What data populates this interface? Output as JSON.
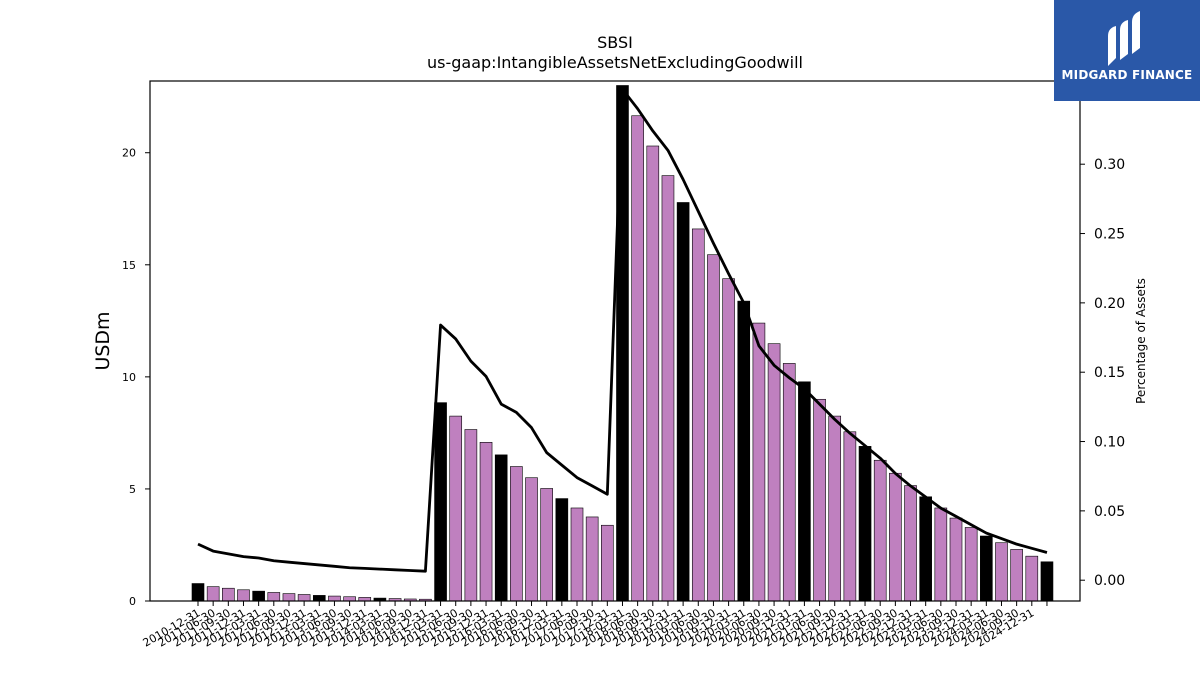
{
  "chart_data": {
    "type": "bar",
    "title": "SBSI",
    "subtitle": "us-gaap:IntangibleAssetsNetExcludingGoodwill",
    "ylabel": "USDm",
    "y2label": "Percentage of Assets",
    "ylim": [
      0,
      23.2
    ],
    "y2lim": [
      -0.015,
      0.36
    ],
    "yticks": [
      0,
      5,
      10,
      15,
      20
    ],
    "y2ticks": [
      "0.00",
      "0.05",
      "0.10",
      "0.15",
      "0.20",
      "0.25",
      "0.30",
      "0.35"
    ],
    "categories": [
      "2010-12-31",
      "2011-03-31",
      "2011-06-30",
      "2011-09-30",
      "2011-12-31",
      "2012-03-31",
      "2012-06-30",
      "2012-09-30",
      "2012-12-31",
      "2013-03-31",
      "2013-06-30",
      "2013-09-30",
      "2013-12-31",
      "2014-03-31",
      "2014-06-30",
      "2014-09-30",
      "2014-12-31",
      "2015-03-31",
      "2015-06-30",
      "2015-09-30",
      "2015-12-31",
      "2016-03-31",
      "2016-06-30",
      "2016-09-30",
      "2016-12-31",
      "2017-03-31",
      "2017-06-30",
      "2017-09-30",
      "2017-12-31",
      "2018-03-31",
      "2018-06-30",
      "2018-09-30",
      "2018-12-31",
      "2019-03-31",
      "2019-06-30",
      "2019-09-30",
      "2019-12-31",
      "2020-03-31",
      "2020-06-30",
      "2020-09-30",
      "2020-12-31",
      "2021-03-31",
      "2021-06-30",
      "2021-09-30",
      "2021-12-31",
      "2022-03-31",
      "2022-06-30",
      "2022-09-30",
      "2022-12-31",
      "2023-03-31",
      "2023-06-30",
      "2023-09-30",
      "2023-12-31",
      "2024-03-31",
      "2024-06-30",
      "2024-09-30",
      "2024-12-31"
    ],
    "tick_labels": [
      "2010-12-31",
      "2011-06-30",
      "2011-09-30",
      "2011-12-31",
      "2012-03-31",
      "2012-06-30",
      "2012-09-30",
      "2012-12-31",
      "2013-03-31",
      "2013-06-30",
      "2013-09-30",
      "2013-12-31",
      "2014-03-31",
      "2014-06-30",
      "2014-09-30",
      "2014-12-31",
      "2015-03-31",
      "2015-06-30",
      "2015-09-30",
      "2015-12-31",
      "2016-03-31",
      "2016-06-30",
      "2016-09-30",
      "2016-12-31",
      "2017-03-31",
      "2017-06-30",
      "2017-09-30",
      "2017-12-31",
      "2018-03-31",
      "2018-06-30",
      "2018-09-30",
      "2018-12-31",
      "2019-03-31",
      "2019-06-30",
      "2019-09-30",
      "2019-12-31",
      "2020-03-31",
      "2020-06-30",
      "2020-09-30",
      "2020-12-31",
      "2021-03-31",
      "2021-06-30",
      "2021-09-30",
      "2021-12-31",
      "2022-03-31",
      "2022-06-30",
      "2022-09-30",
      "2022-12-31",
      "2023-03-31",
      "2023-06-30",
      "2023-09-30",
      "2023-12-31",
      "2024-03-31",
      "2024-06-30",
      "2024-09-30",
      "2024-12-31"
    ],
    "values": [
      0.78,
      0.64,
      0.57,
      0.5,
      0.44,
      0.38,
      0.33,
      0.29,
      0.25,
      0.22,
      0.19,
      0.16,
      0.13,
      0.11,
      0.09,
      0.08,
      8.85,
      8.25,
      7.65,
      7.08,
      6.52,
      6.0,
      5.5,
      5.02,
      4.57,
      4.15,
      3.75,
      3.38,
      23.0,
      21.65,
      20.3,
      18.98,
      17.78,
      16.6,
      15.45,
      14.38,
      13.38,
      12.4,
      11.48,
      10.6,
      9.78,
      9.0,
      8.25,
      7.55,
      6.9,
      6.28,
      5.7,
      5.15,
      4.65,
      4.15,
      3.7,
      3.28,
      2.9,
      2.6,
      2.3,
      2.0,
      1.75
    ],
    "year_end_color": "#000000",
    "bar_color": "#bf80bf",
    "line_series": {
      "name": "Percentage of Assets",
      "color": "#000000",
      "values": [
        0.026,
        0.021,
        0.019,
        0.017,
        0.016,
        0.014,
        0.013,
        0.012,
        0.011,
        0.01,
        0.009,
        0.0085,
        0.008,
        0.0075,
        0.007,
        0.0065,
        0.184,
        0.174,
        0.158,
        0.147,
        0.127,
        0.121,
        0.11,
        0.092,
        0.083,
        0.074,
        0.068,
        0.062,
        0.354,
        0.34,
        0.324,
        0.31,
        0.289,
        0.266,
        0.243,
        0.221,
        0.2,
        0.169,
        0.155,
        0.146,
        0.138,
        0.127,
        0.116,
        0.106,
        0.097,
        0.088,
        0.077,
        0.068,
        0.06,
        0.052,
        0.046,
        0.04,
        0.034,
        0.03,
        0.026,
        0.023,
        0.02
      ]
    }
  },
  "logo": {
    "text": "MIDGARD FINANCE",
    "color": "#2a58a8"
  }
}
